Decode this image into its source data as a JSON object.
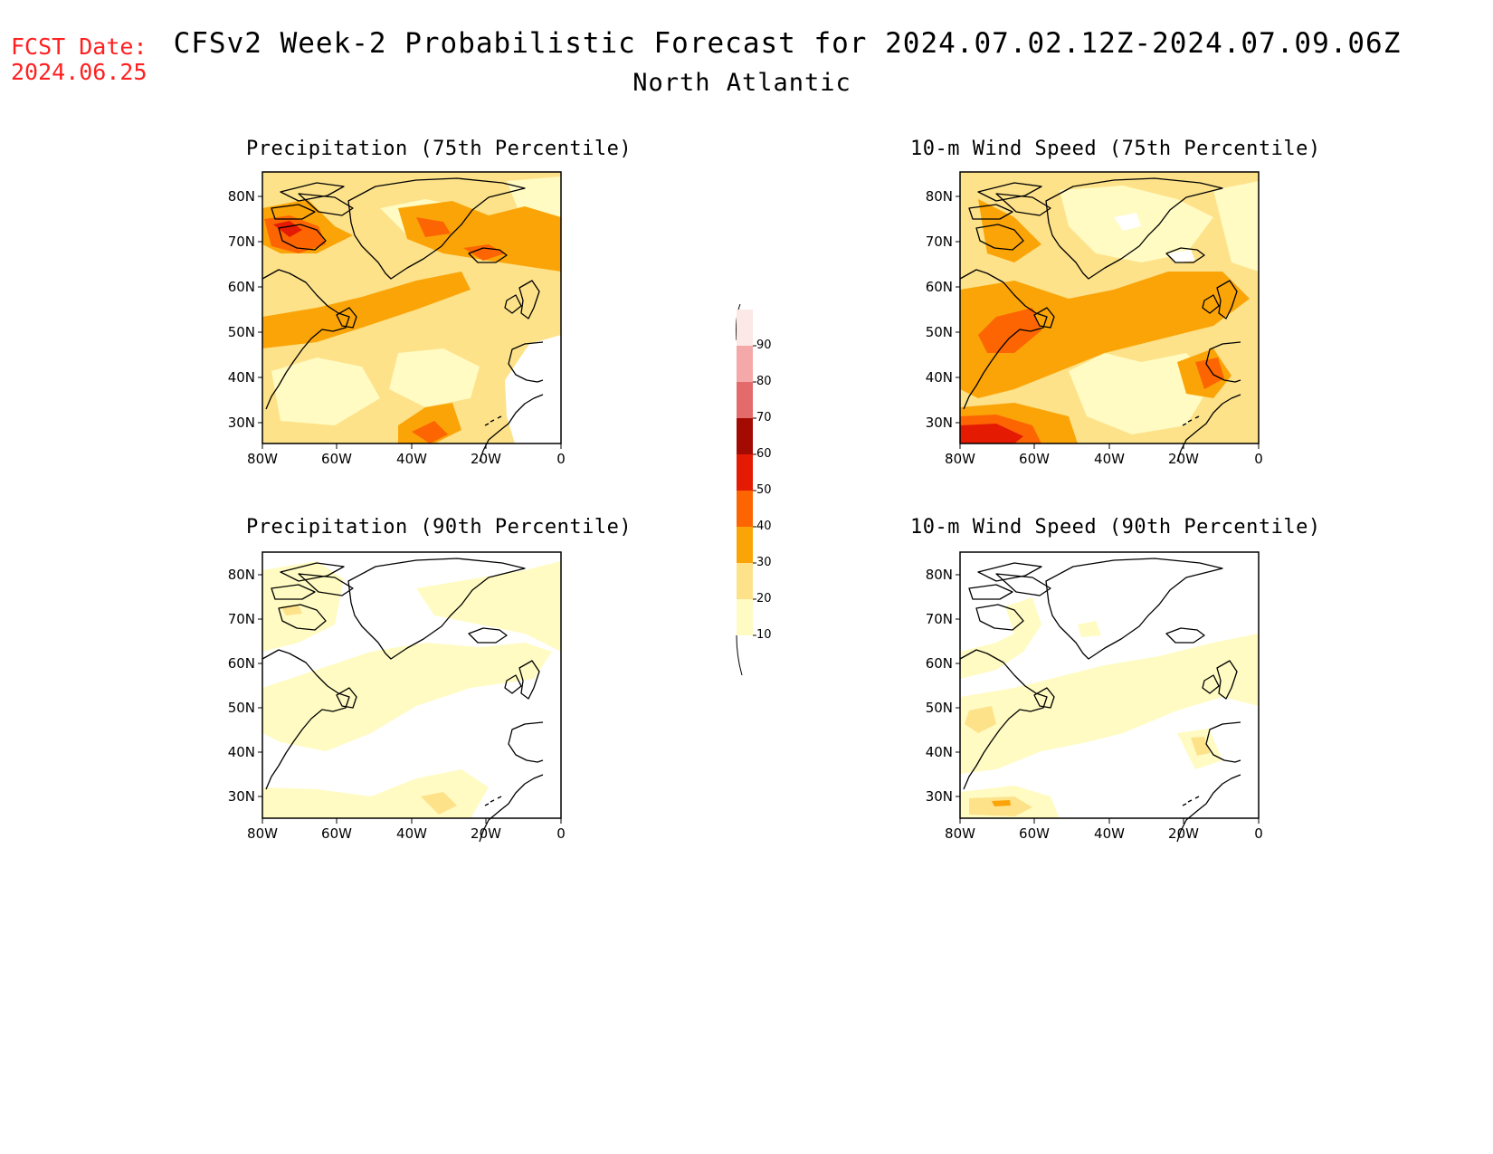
{
  "header": {
    "fcst_label": "FCST Date:",
    "fcst_date": "2024.06.25",
    "title": "CFSv2 Week-2 Probabilistic Forecast for 2024.07.02.12Z-2024.07.09.06Z",
    "region": "North Atlantic"
  },
  "panels": [
    {
      "id": "p75",
      "title": "Precipitation (75th Percentile)"
    },
    {
      "id": "p90",
      "title": "Precipitation (90th Percentile)"
    },
    {
      "id": "w75",
      "title": "10-m Wind Speed (75th Percentile)"
    },
    {
      "id": "w90",
      "title": "10-m Wind Speed (90th Percentile)"
    }
  ],
  "axes": {
    "lat_labels": [
      "30N",
      "40N",
      "50N",
      "60N",
      "70N",
      "80N"
    ],
    "lon_labels": [
      "80W",
      "60W",
      "40W",
      "20W",
      "0"
    ]
  },
  "colorbar": {
    "labels": [
      "10",
      "20",
      "30",
      "40",
      "50",
      "60",
      "70",
      "80",
      "90"
    ],
    "colors": [
      "#fffbc2",
      "#fde28a",
      "#fba407",
      "#fc6502",
      "#e41a03",
      "#a30a02",
      "#e36b6b",
      "#f4a8a8",
      "#fde8e8"
    ]
  }
}
